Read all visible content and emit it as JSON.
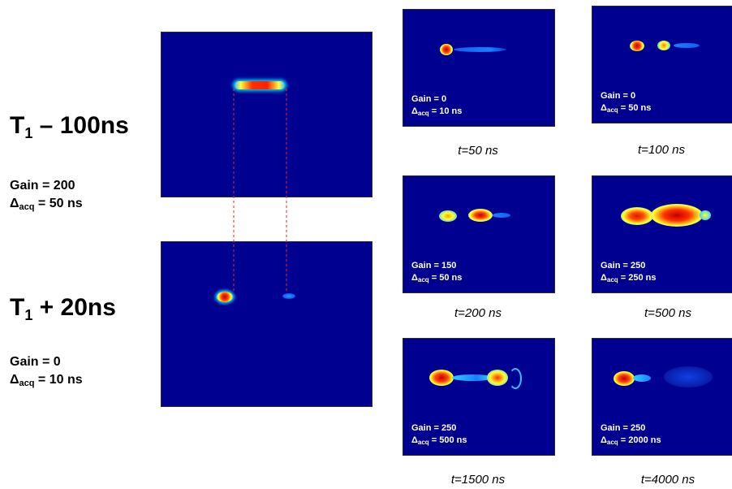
{
  "main": {
    "label1": {
      "prefix": "T",
      "sub": "1",
      "suffix": " – 100ns"
    },
    "params1": {
      "gain": "Gain = 200",
      "delta": "Δ",
      "delta_sub": "acq",
      "delta_val": " = 50 ns"
    },
    "label2": {
      "prefix": "T",
      "sub": "1",
      "suffix": " + 20ns"
    },
    "params2": {
      "gain": "Gain = 0",
      "delta": "Δ",
      "delta_sub": "acq",
      "delta_val": " = 10 ns"
    }
  },
  "panels": [
    {
      "gain": "Gain = 0",
      "delta": "Δ",
      "delta_sub": "acq",
      "delta_val": " = 10 ns",
      "time": "t=50 ns"
    },
    {
      "gain": "Gain = 0",
      "delta": "Δ",
      "delta_sub": "acq",
      "delta_val": " = 50 ns",
      "time": "t=100 ns"
    },
    {
      "gain": "Gain = 150",
      "delta": "Δ",
      "delta_sub": "acq",
      "delta_val": " = 50 ns",
      "time": "t=200 ns"
    },
    {
      "gain": "Gain = 250",
      "delta": "Δ",
      "delta_sub": "acq",
      "delta_val": " = 250 ns",
      "time": "t=500 ns"
    },
    {
      "gain": "Gain = 250",
      "delta": "Δ",
      "delta_sub": "acq",
      "delta_val": " = 500 ns",
      "time": "t=1500 ns"
    },
    {
      "gain": "Gain = 250",
      "delta": "Δ",
      "delta_sub": "acq",
      "delta_val": " = 2000 ns",
      "time": "t=4000 ns"
    }
  ],
  "colors": {
    "background": "#000090",
    "connector": "#ff2020"
  }
}
